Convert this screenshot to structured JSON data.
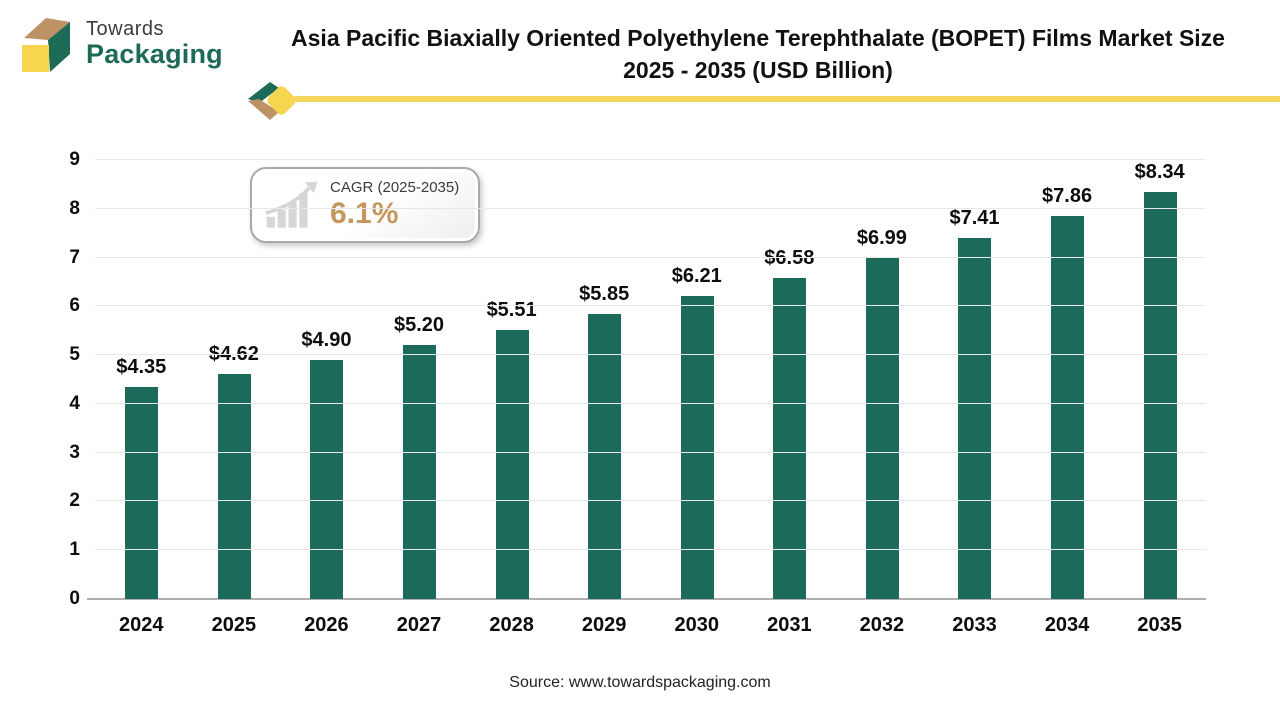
{
  "brand": {
    "name_line1": "Towards",
    "name_line2": "Packaging"
  },
  "header": {
    "title_line1": "Asia Pacific Biaxially Oriented Polyethylene Terephthalate (BOPET) Films Market Size",
    "title_line2": "2025 - 2035 (USD Billion)"
  },
  "cagr": {
    "label": "CAGR (2025-2035)",
    "value": "6.1%"
  },
  "chart_data": {
    "type": "bar",
    "title": "Asia Pacific Biaxially Oriented Polyethylene Terephthalate (BOPET) Films Market Size 2025 - 2035 (USD Billion)",
    "categories": [
      "2024",
      "2025",
      "2026",
      "2027",
      "2028",
      "2029",
      "2030",
      "2031",
      "2032",
      "2033",
      "2034",
      "2035"
    ],
    "values": [
      4.35,
      4.62,
      4.9,
      5.2,
      5.51,
      5.85,
      6.21,
      6.58,
      6.99,
      7.41,
      7.86,
      8.34
    ],
    "value_labels": [
      "$4.35",
      "$4.62",
      "$4.90",
      "$5.20",
      "$5.51",
      "$5.85",
      "$6.21",
      "$6.58",
      "$6.99",
      "$7.41",
      "$7.86",
      "$8.34"
    ],
    "xlabel": "",
    "ylabel": "",
    "ylim": [
      0,
      9
    ],
    "yticks": [
      0,
      1,
      2,
      3,
      4,
      5,
      6,
      7,
      8,
      9
    ],
    "grid": true,
    "legend": null,
    "bar_color": "#1c6b5a"
  },
  "colors": {
    "bar_green": "#1c6b5a",
    "brand_green": "#1d6a57",
    "brand_tan": "#bd9265",
    "brand_yellow": "#f7d54f",
    "accent_yellow_line": "#f5d65f",
    "cagr_accent": "#c5975c",
    "gridline": "#e8e8e8",
    "baseline": "#afafaf"
  },
  "footer": {
    "source": "Source: www.towardspackaging.com"
  }
}
